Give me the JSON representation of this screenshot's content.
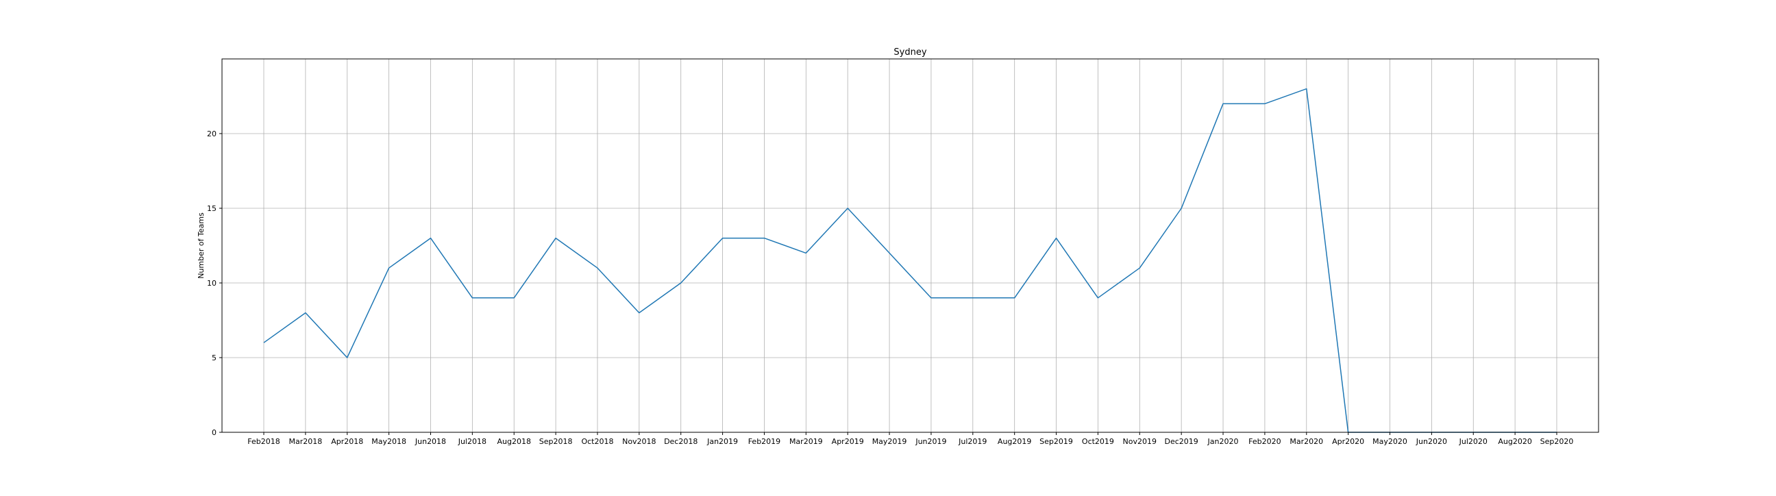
{
  "chart_data": {
    "type": "line",
    "title": "Sydney",
    "xlabel": "",
    "ylabel": "Number of Teams",
    "categories": [
      "Feb2018",
      "Mar2018",
      "Apr2018",
      "May2018",
      "Jun2018",
      "Jul2018",
      "Aug2018",
      "Sep2018",
      "Oct2018",
      "Nov2018",
      "Dec2018",
      "Jan2019",
      "Feb2019",
      "Mar2019",
      "Apr2019",
      "May2019",
      "Jun2019",
      "Jul2019",
      "Aug2019",
      "Sep2019",
      "Oct2019",
      "Nov2019",
      "Dec2019",
      "Jan2020",
      "Feb2020",
      "Mar2020",
      "Apr2020",
      "May2020",
      "Jun2020",
      "Jul2020",
      "Aug2020",
      "Sep2020"
    ],
    "series": [
      {
        "values": [
          6,
          8,
          5,
          11,
          13,
          9,
          9,
          13,
          11,
          8,
          10,
          13,
          13,
          12,
          15,
          12,
          9,
          9,
          9,
          13,
          9,
          11,
          15,
          22,
          22,
          23,
          0,
          0,
          0,
          0,
          0,
          0
        ]
      }
    ],
    "ylim": [
      0,
      25
    ],
    "yticks": [
      0,
      5,
      10,
      15,
      20
    ],
    "grid": true,
    "line_color": "#1f77b4"
  }
}
